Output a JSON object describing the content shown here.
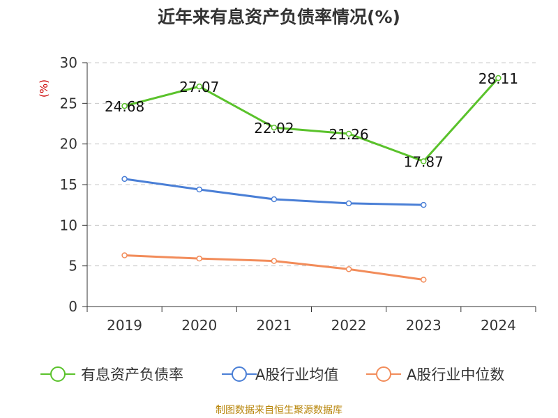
{
  "chart_data": {
    "type": "line",
    "title": "近年来有息资产负债率情况(%)",
    "ylabel": "(%)",
    "categories": [
      "2019",
      "2020",
      "2021",
      "2022",
      "2023",
      "2024"
    ],
    "ylim": [
      0,
      30
    ],
    "yticks": [
      0,
      5,
      10,
      15,
      20,
      25,
      30
    ],
    "grid": true,
    "legend_position": "bottom",
    "series": [
      {
        "name": "有息资产负债率",
        "color": "#5ac22b",
        "values": [
          24.68,
          27.07,
          22.02,
          21.26,
          17.87,
          28.11
        ],
        "labels": [
          "24.68",
          "27.07",
          "22.02",
          "21.26",
          "17.87",
          "28.11"
        ]
      },
      {
        "name": "A股行业均值",
        "color": "#4a7fd6",
        "values": [
          15.7,
          14.4,
          13.2,
          12.7,
          12.5,
          null
        ]
      },
      {
        "name": "A股行业中位数",
        "color": "#f28c5a",
        "values": [
          6.3,
          5.9,
          5.6,
          4.6,
          3.3,
          null
        ]
      }
    ]
  },
  "source": "制图数据来自恒生聚源数据库"
}
